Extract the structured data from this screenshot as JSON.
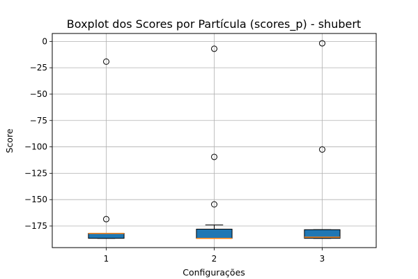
{
  "chart_data": {
    "type": "box",
    "title": "Boxplot dos Scores por Partícula (scores_p) - shubert",
    "xlabel": "Configurações",
    "ylabel": "Score",
    "ylim": [
      -195.5,
      7.5
    ],
    "yticks": [
      0,
      -25,
      -50,
      -75,
      -100,
      -125,
      -150,
      -175
    ],
    "ytick_labels": [
      "0",
      "−25",
      "−50",
      "−75",
      "−100",
      "−125",
      "−150",
      "−175"
    ],
    "grid": true,
    "box_color": "#1f77b4",
    "median_color": "#ff7f0e",
    "categories": [
      "1",
      "2",
      "3"
    ],
    "boxes": [
      {
        "label": "1",
        "whisker_low": -186.7,
        "q1": -186.7,
        "median": -182.0,
        "q3": -182.0,
        "whisker_high": -182.0,
        "outliers": [
          -168.5,
          -19.2
        ]
      },
      {
        "label": "2",
        "whisker_low": -186.7,
        "q1": -186.7,
        "median": -186.7,
        "q3": -178.0,
        "whisker_high": -174.0,
        "outliers": [
          -154.5,
          -109.5,
          -7.0
        ]
      },
      {
        "label": "3",
        "whisker_low": -186.7,
        "q1": -186.7,
        "median": -185.7,
        "q3": -178.5,
        "whisker_high": -178.5,
        "outliers": [
          -102.5,
          -1.8
        ]
      }
    ]
  }
}
